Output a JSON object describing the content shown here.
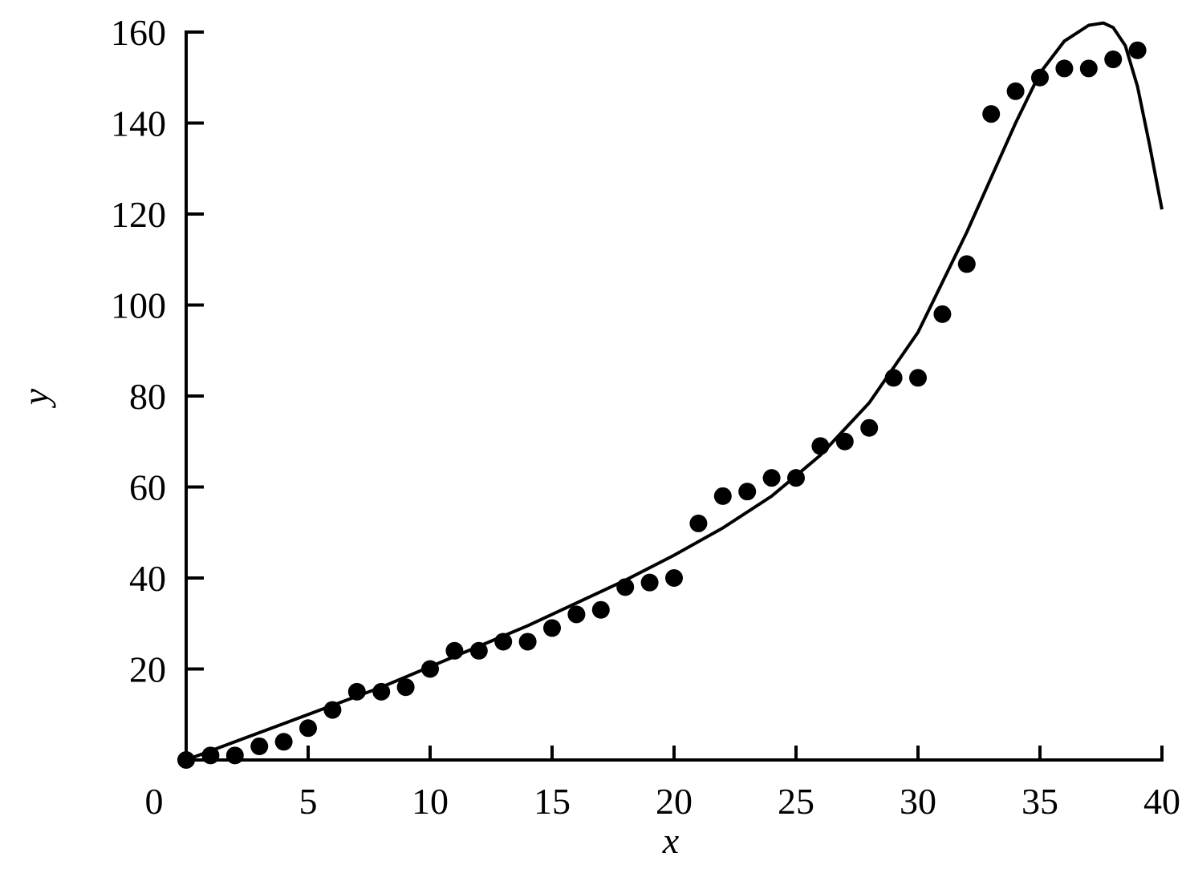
{
  "chart_data": {
    "type": "scatter",
    "title": "",
    "xlabel": "x",
    "ylabel": "y",
    "xlim": [
      0,
      40
    ],
    "ylim": [
      0,
      160
    ],
    "xticks": [
      0,
      5,
      10,
      15,
      20,
      25,
      30,
      35,
      40
    ],
    "yticks": [
      20,
      40,
      60,
      80,
      100,
      120,
      140,
      160
    ],
    "grid": false,
    "legend": "none",
    "colors": {
      "points": "#000000",
      "curve": "#000000",
      "axes": "#000000"
    },
    "series": [
      {
        "kind": "points",
        "x": [
          0,
          1,
          2,
          3,
          4,
          5,
          6,
          7,
          8,
          9,
          10,
          11,
          12,
          13,
          14,
          15,
          16,
          17,
          18,
          19,
          20,
          21,
          22,
          23,
          24,
          25,
          26,
          27,
          28,
          29,
          30,
          31,
          32,
          33,
          34,
          35,
          36,
          37,
          38,
          39
        ],
        "y": [
          0,
          1,
          1,
          3,
          4,
          7,
          11,
          15,
          15,
          16,
          20,
          24,
          24,
          26,
          26,
          29,
          32,
          33,
          38,
          39,
          40,
          52,
          58,
          59,
          62,
          62,
          69,
          70,
          73,
          84,
          84,
          98,
          109,
          142,
          147,
          150,
          152,
          152,
          154,
          156
        ]
      },
      {
        "kind": "curve",
        "x": [
          0,
          2,
          4,
          6,
          8,
          10,
          12,
          14,
          16,
          18,
          20,
          22,
          24,
          26,
          28,
          30,
          32,
          33,
          34,
          35,
          36,
          37,
          37.6,
          38,
          38.5,
          39,
          39.5,
          40
        ],
        "y": [
          0,
          4,
          8,
          12,
          16,
          20.5,
          25,
          29.5,
          34.5,
          39.5,
          45,
          51,
          58,
          67,
          78.5,
          94,
          116,
          128,
          140,
          151,
          158,
          161.5,
          162,
          161,
          157,
          148,
          135,
          121
        ]
      }
    ]
  }
}
